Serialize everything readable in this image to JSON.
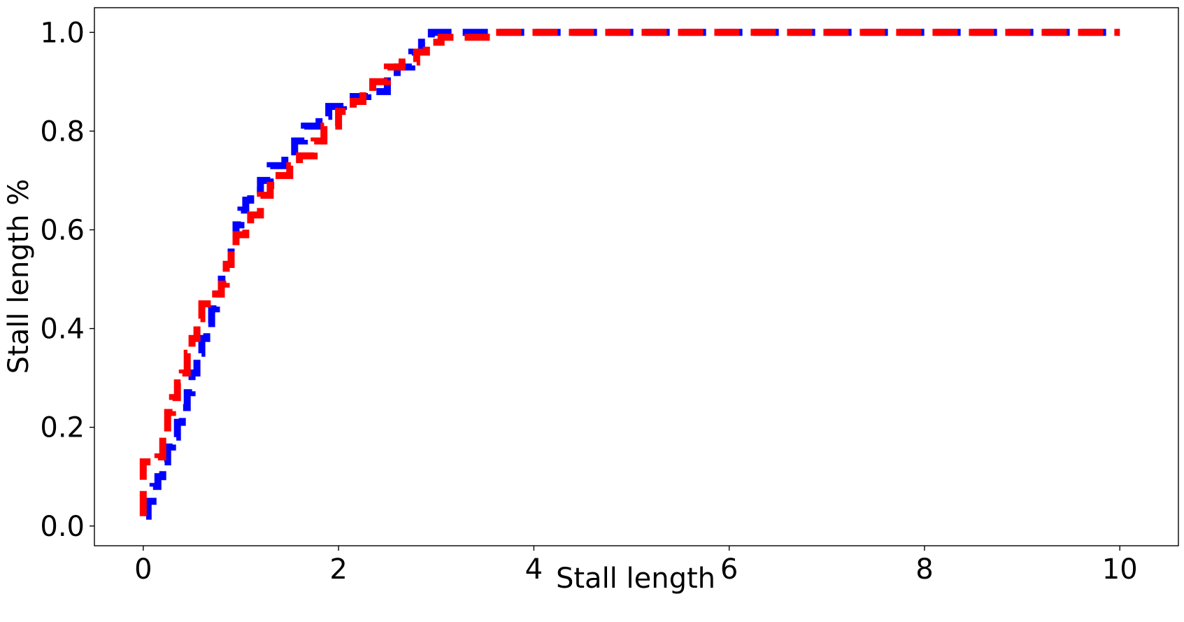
{
  "chart_data": {
    "type": "line",
    "title": "",
    "xlabel": "Stall length",
    "ylabel": "Stall length %",
    "xlim": [
      -0.5,
      10.6
    ],
    "ylim": [
      -0.04,
      1.05
    ],
    "xticks": [
      0,
      2,
      4,
      6,
      8,
      10
    ],
    "xtick_labels": [
      "0",
      "2",
      "4",
      "6",
      "8",
      "10"
    ],
    "yticks": [
      0.0,
      0.2,
      0.4,
      0.6,
      0.8,
      1.0
    ],
    "ytick_labels": [
      "0.0",
      "0.2",
      "0.4",
      "0.6",
      "0.8",
      "1.0"
    ],
    "grid": false,
    "line_style": "dashed",
    "series": [
      {
        "color": "#0000ff",
        "step": true,
        "points": [
          [
            0.03,
            0.02
          ],
          [
            0.05,
            0.05
          ],
          [
            0.1,
            0.08
          ],
          [
            0.15,
            0.1
          ],
          [
            0.2,
            0.13
          ],
          [
            0.25,
            0.16
          ],
          [
            0.3,
            0.18
          ],
          [
            0.35,
            0.21
          ],
          [
            0.4,
            0.24
          ],
          [
            0.45,
            0.27
          ],
          [
            0.5,
            0.31
          ],
          [
            0.55,
            0.35
          ],
          [
            0.6,
            0.38
          ],
          [
            0.65,
            0.41
          ],
          [
            0.7,
            0.44
          ],
          [
            0.75,
            0.47
          ],
          [
            0.8,
            0.5
          ],
          [
            0.85,
            0.53
          ],
          [
            0.9,
            0.57
          ],
          [
            0.95,
            0.61
          ],
          [
            1.0,
            0.64
          ],
          [
            1.05,
            0.66
          ],
          [
            1.1,
            0.68
          ],
          [
            1.2,
            0.7
          ],
          [
            1.3,
            0.73
          ],
          [
            1.45,
            0.75
          ],
          [
            1.55,
            0.78
          ],
          [
            1.65,
            0.81
          ],
          [
            1.8,
            0.83
          ],
          [
            1.9,
            0.85
          ],
          [
            2.05,
            0.86
          ],
          [
            2.15,
            0.87
          ],
          [
            2.3,
            0.88
          ],
          [
            2.5,
            0.91
          ],
          [
            2.6,
            0.93
          ],
          [
            2.75,
            0.96
          ],
          [
            2.85,
            0.98
          ],
          [
            2.95,
            1.0
          ],
          [
            10.0,
            1.0
          ]
        ]
      },
      {
        "color": "#ff0000",
        "step": true,
        "points": [
          [
            0.0,
            0.02
          ],
          [
            0.0,
            0.13
          ],
          [
            0.15,
            0.14
          ],
          [
            0.2,
            0.19
          ],
          [
            0.25,
            0.23
          ],
          [
            0.3,
            0.26
          ],
          [
            0.35,
            0.29
          ],
          [
            0.4,
            0.31
          ],
          [
            0.45,
            0.35
          ],
          [
            0.5,
            0.38
          ],
          [
            0.55,
            0.42
          ],
          [
            0.6,
            0.45
          ],
          [
            0.7,
            0.47
          ],
          [
            0.8,
            0.49
          ],
          [
            0.85,
            0.53
          ],
          [
            0.9,
            0.56
          ],
          [
            0.95,
            0.59
          ],
          [
            1.05,
            0.61
          ],
          [
            1.1,
            0.63
          ],
          [
            1.2,
            0.67
          ],
          [
            1.3,
            0.69
          ],
          [
            1.35,
            0.71
          ],
          [
            1.5,
            0.73
          ],
          [
            1.6,
            0.75
          ],
          [
            1.75,
            0.78
          ],
          [
            1.85,
            0.81
          ],
          [
            2.0,
            0.84
          ],
          [
            2.15,
            0.86
          ],
          [
            2.25,
            0.88
          ],
          [
            2.35,
            0.9
          ],
          [
            2.5,
            0.93
          ],
          [
            2.65,
            0.94
          ],
          [
            2.8,
            0.96
          ],
          [
            2.9,
            0.98
          ],
          [
            3.05,
            0.99
          ],
          [
            3.6,
            1.0
          ],
          [
            10.0,
            1.0
          ]
        ]
      }
    ]
  }
}
